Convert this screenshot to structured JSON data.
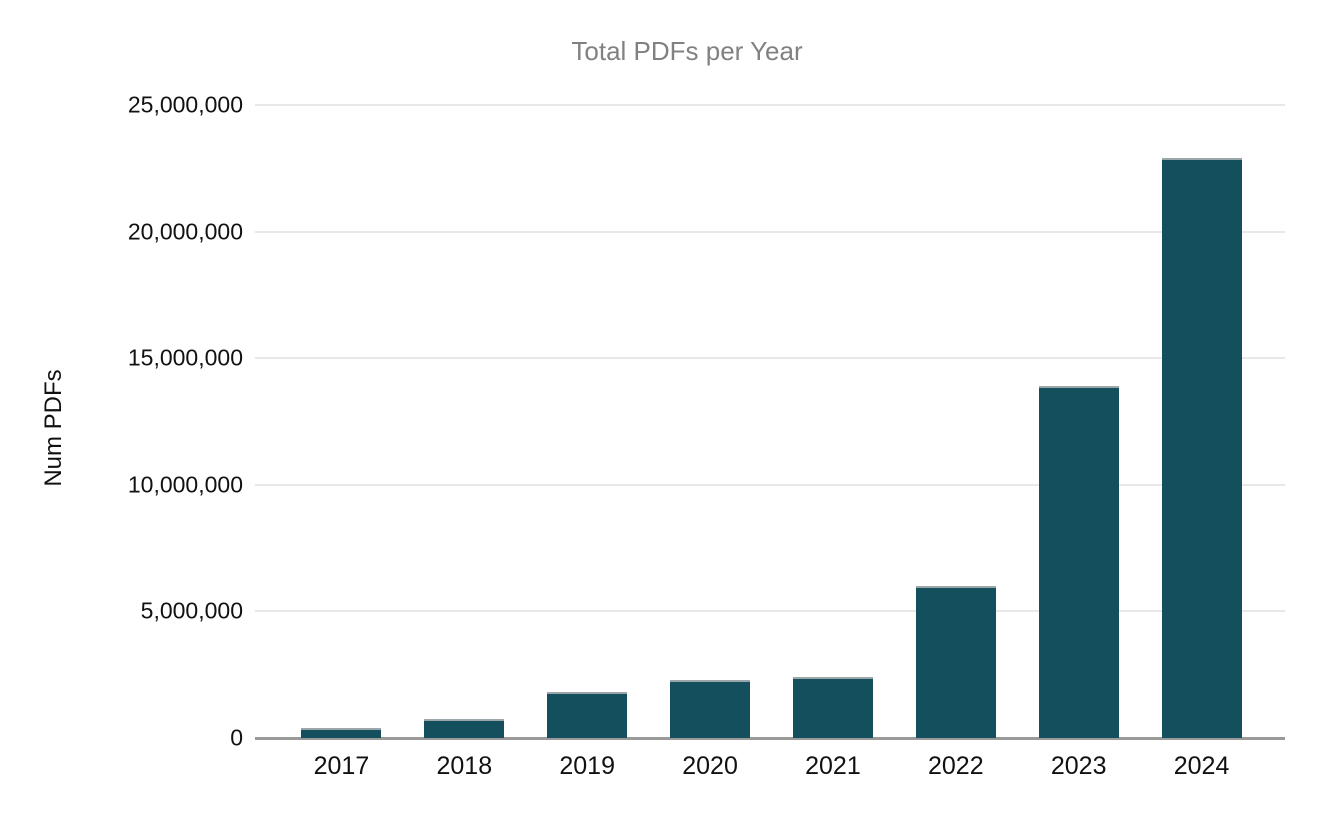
{
  "chart_data": {
    "type": "bar",
    "title": "Total PDFs per Year",
    "xlabel": "",
    "ylabel": "Num PDFs",
    "categories": [
      "2017",
      "2018",
      "2019",
      "2020",
      "2021",
      "2022",
      "2023",
      "2024"
    ],
    "values": [
      400000,
      750000,
      1800000,
      2300000,
      2400000,
      6000000,
      13900000,
      22900000
    ],
    "ylim": [
      0,
      25000000
    ],
    "yticks": [
      0,
      5000000,
      10000000,
      15000000,
      20000000,
      25000000
    ],
    "ytick_labels": [
      "0",
      "5,000,000",
      "10,000,000",
      "15,000,000",
      "20,000,000",
      "25,000,000"
    ],
    "grid": true,
    "legend_position": "none",
    "bar_color": "#134f5c",
    "title_color": "#818181",
    "axis_label_color": "#111111",
    "gridline_color": "#e8e8e8",
    "baseline_color": "#9a9a9a",
    "background_color": "#ffffff"
  }
}
